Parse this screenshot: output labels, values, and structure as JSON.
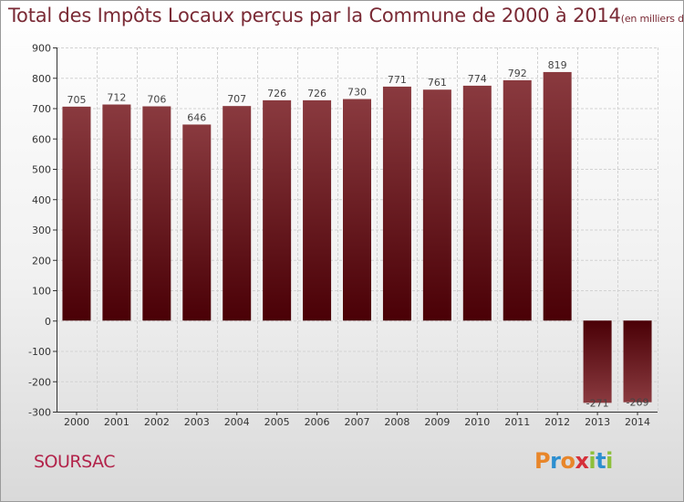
{
  "title": "Total des Impôts Locaux perçus par la Commune de 2000 à 2014",
  "title_unit": "(en milliers d'€)",
  "commune": "SOURSAC",
  "brand": {
    "letters": [
      "P",
      "r",
      "o",
      "x",
      "i",
      "t",
      "i"
    ],
    "colors": [
      "#e8862a",
      "#2d8fd0",
      "#e8862a",
      "#d5303a",
      "#8dbf3b",
      "#2d8fd0",
      "#8dbf3b"
    ]
  },
  "colors": {
    "bar_light": "#8a3a3f",
    "bar_dark": "#4a0006",
    "grid": "#d2d2d2",
    "title": "#7a2a35",
    "commune": "#b2234a"
  },
  "chart_data": {
    "type": "bar",
    "title": "Total des Impôts Locaux perçus par la Commune de 2000 à 2014",
    "xlabel": "",
    "ylabel": "",
    "categories": [
      "2000",
      "2001",
      "2002",
      "2003",
      "2004",
      "2005",
      "2006",
      "2007",
      "2008",
      "2009",
      "2010",
      "2011",
      "2012",
      "2013",
      "2014"
    ],
    "values": [
      705,
      712,
      706,
      646,
      707,
      726,
      726,
      730,
      771,
      761,
      774,
      792,
      819,
      -271,
      -269
    ],
    "ylim": [
      -300,
      900
    ],
    "yticks": [
      -300,
      -200,
      -100,
      0,
      100,
      200,
      300,
      400,
      500,
      600,
      700,
      800,
      900
    ],
    "grid": true
  }
}
